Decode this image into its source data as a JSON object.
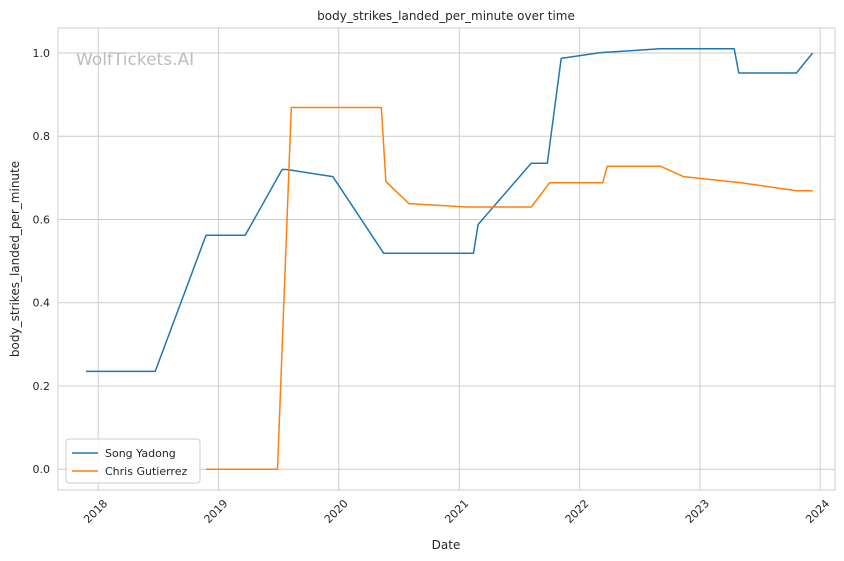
{
  "watermark": "WolfTickets.AI",
  "chart_data": {
    "type": "line",
    "title": "body_strikes_landed_per_minute over time",
    "xlabel": "Date",
    "ylabel": "body_strikes_landed_per_minute",
    "x_ticks": [
      "2018",
      "2019",
      "2020",
      "2021",
      "2022",
      "2023",
      "2024"
    ],
    "y_ticks": [
      "0.0",
      "0.2",
      "0.4",
      "0.6",
      "0.8",
      "1.0"
    ],
    "xlim": [
      "2017-09-01",
      "2024-02-15"
    ],
    "ylim": [
      -0.05,
      1.06
    ],
    "grid": true,
    "legend_position": "lower-left",
    "series": [
      {
        "name": "Song Yadong",
        "color": "#1f77b4",
        "points": [
          [
            "2017-11-25",
            0.235
          ],
          [
            "2018-06-23",
            0.235
          ],
          [
            "2018-11-24",
            0.562
          ],
          [
            "2019-03-23",
            0.562
          ],
          [
            "2019-07-13",
            0.72
          ],
          [
            "2019-07-27",
            0.72
          ],
          [
            "2019-12-14",
            0.703
          ],
          [
            "2020-05-16",
            0.519
          ],
          [
            "2021-02-13",
            0.519
          ],
          [
            "2021-02-27",
            0.588
          ],
          [
            "2021-08-07",
            0.735
          ],
          [
            "2021-09-25",
            0.735
          ],
          [
            "2021-11-06",
            0.987
          ],
          [
            "2022-03-05",
            1.001
          ],
          [
            "2022-09-03",
            1.01
          ],
          [
            "2023-04-15",
            1.01
          ],
          [
            "2023-04-29",
            0.952
          ],
          [
            "2023-10-21",
            0.952
          ],
          [
            "2023-12-09",
            1.0
          ]
        ]
      },
      {
        "name": "Chris Gutierrez",
        "color": "#ff7f0e",
        "points": [
          [
            "2018-11-24",
            0.0
          ],
          [
            "2019-06-29",
            0.0
          ],
          [
            "2019-08-10",
            0.869
          ],
          [
            "2020-05-09",
            0.869
          ],
          [
            "2020-05-23",
            0.691
          ],
          [
            "2020-08-01",
            0.638
          ],
          [
            "2021-01-23",
            0.63
          ],
          [
            "2021-08-07",
            0.63
          ],
          [
            "2021-10-02",
            0.688
          ],
          [
            "2022-03-12",
            0.688
          ],
          [
            "2022-03-26",
            0.728
          ],
          [
            "2022-09-03",
            0.728
          ],
          [
            "2022-11-12",
            0.703
          ],
          [
            "2023-05-06",
            0.688
          ],
          [
            "2023-10-21",
            0.669
          ],
          [
            "2023-12-09",
            0.669
          ]
        ]
      }
    ]
  }
}
